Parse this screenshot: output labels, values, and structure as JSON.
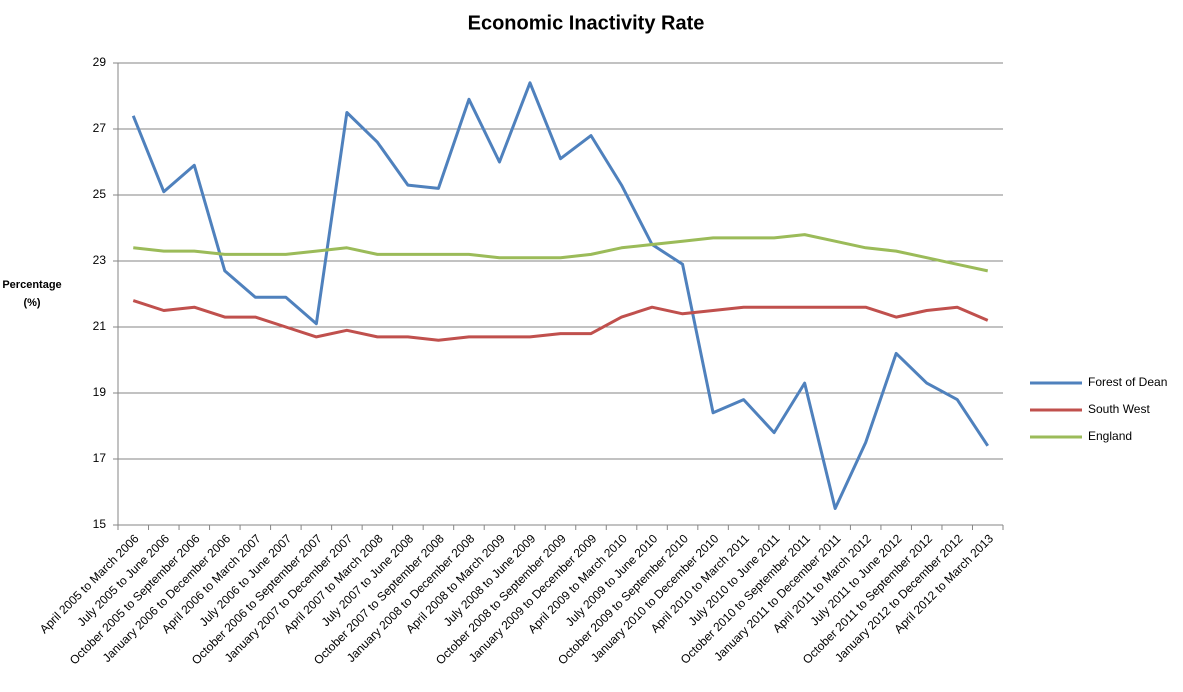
{
  "chart_data": {
    "type": "line",
    "title": "Economic Inactivity Rate",
    "y_label": "Percentage (%)",
    "categories": [
      "April 2005 to March 2006",
      "July 2005 to June 2006",
      "October 2005 to September 2006",
      "January 2006 to December 2006",
      "April 2006 to March 2007",
      "July 2006 to June 2007",
      "October 2006 to September 2007",
      "January 2007 to December 2007",
      "April 2007 to March 2008",
      "July 2007 to June 2008",
      "October 2007 to September 2008",
      "January 2008 to December 2008",
      "April 2008 to March 2009",
      "July 2008 to June 2009",
      "October 2008 to September 2009",
      "January 2009 to December 2009",
      "April 2009 to March 2010",
      "July 2009 to June 2010",
      "October 2009 to September 2010",
      "January 2010 to December 2010",
      "April 2010 to March 2011",
      "July 2010 to June 2011",
      "October 2010 to September 2011",
      "January 2011 to December 2011",
      "April 2011 to March 2012",
      "July 2011 to June 2012",
      "October 2011 to September 2012",
      "January 2012 to December 2012",
      "April 2012 to March 2013"
    ],
    "series": [
      {
        "name": "Forest of Dean",
        "color": "#4f81bd",
        "values": [
          27.4,
          25.1,
          25.9,
          22.7,
          21.9,
          21.9,
          21.1,
          27.5,
          26.6,
          25.3,
          25.2,
          27.9,
          26.0,
          28.4,
          26.1,
          26.8,
          25.3,
          23.5,
          22.9,
          18.4,
          18.8,
          17.8,
          19.3,
          15.5,
          17.5,
          20.2,
          19.3,
          18.8,
          17.4
        ]
      },
      {
        "name": "South West",
        "color": "#c0504d",
        "values": [
          21.8,
          21.5,
          21.6,
          21.3,
          21.3,
          21.0,
          20.7,
          20.9,
          20.7,
          20.7,
          20.6,
          20.7,
          20.7,
          20.7,
          20.8,
          20.8,
          21.3,
          21.6,
          21.4,
          21.5,
          21.6,
          21.6,
          21.6,
          21.6,
          21.6,
          21.3,
          21.5,
          21.6,
          21.2
        ]
      },
      {
        "name": "England",
        "color": "#9bbb59",
        "values": [
          23.4,
          23.3,
          23.3,
          23.2,
          23.2,
          23.2,
          23.3,
          23.4,
          23.2,
          23.2,
          23.2,
          23.2,
          23.1,
          23.1,
          23.1,
          23.2,
          23.4,
          23.5,
          23.6,
          23.7,
          23.7,
          23.7,
          23.8,
          23.6,
          23.4,
          23.3,
          23.1,
          22.9,
          22.7
        ]
      }
    ],
    "ylim": [
      15,
      29
    ],
    "yticks": [
      15,
      17,
      19,
      21,
      23,
      25,
      27,
      29
    ],
    "grid": true,
    "legend": "right"
  }
}
